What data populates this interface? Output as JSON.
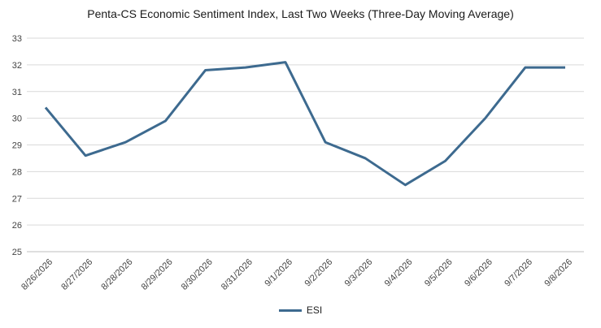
{
  "chart_data": {
    "type": "line",
    "title": "Penta-CS Economic Sentiment Index, Last Two Weeks (Three-Day Moving Average)",
    "categories": [
      "8/26/2026",
      "8/27/2026",
      "8/28/2026",
      "8/29/2026",
      "8/30/2026",
      "8/31/2026",
      "9/1/2026",
      "9/2/2026",
      "9/3/2026",
      "9/4/2026",
      "9/5/2026",
      "9/6/2026",
      "9/7/2026",
      "9/8/2026"
    ],
    "series": [
      {
        "name": "ESI",
        "values": [
          30.4,
          28.6,
          29.1,
          29.9,
          31.8,
          31.9,
          32.1,
          29.1,
          28.5,
          27.5,
          28.4,
          30.0,
          31.9,
          31.9
        ]
      }
    ],
    "ylim": [
      25,
      33
    ],
    "yticks": [
      25,
      26,
      27,
      28,
      29,
      30,
      31,
      32,
      33
    ],
    "grid": true,
    "legend_position": "bottom",
    "colors": {
      "line": "#3d6a8f",
      "grid": "#d9d9d9",
      "axis": "#bfbfbf"
    }
  }
}
